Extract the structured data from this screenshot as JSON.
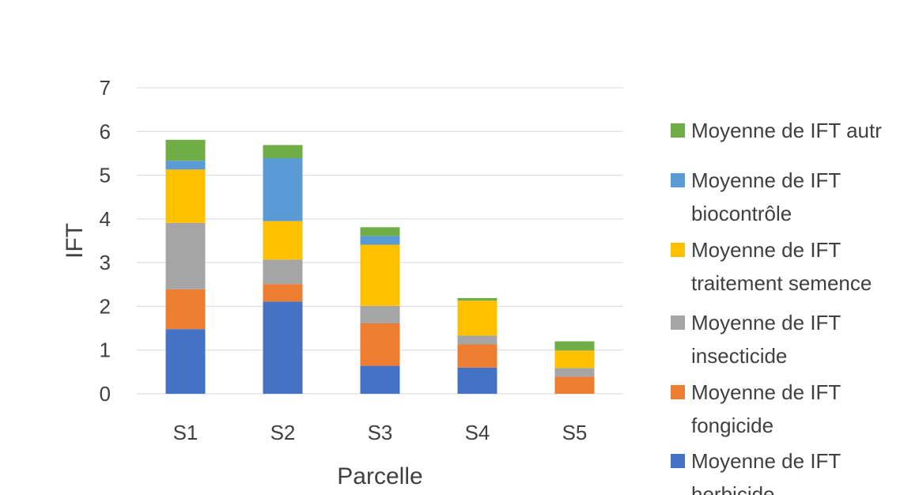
{
  "chart_data": {
    "type": "bar",
    "stacked": true,
    "title": "",
    "xlabel": "Parcelle",
    "ylabel": "IFT",
    "ylim": [
      0,
      7
    ],
    "yticks": [
      "0",
      "1",
      "2",
      "3",
      "4",
      "5",
      "6",
      "7"
    ],
    "grid": true,
    "legend_position": "right",
    "categories": [
      "S1",
      "S2",
      "S3",
      "S4",
      "S5"
    ],
    "series": [
      {
        "name": "Moyenne de IFT herbicide",
        "legend_lines": [
          "Moyenne de IFT",
          "herbicide"
        ],
        "color": "#4472C4",
        "values": [
          1.48,
          2.11,
          0.64,
          0.6,
          0.0
        ]
      },
      {
        "name": "Moyenne de IFT fongicide",
        "legend_lines": [
          "Moyenne de IFT",
          "fongicide"
        ],
        "color": "#ED7D31",
        "values": [
          0.91,
          0.4,
          0.97,
          0.53,
          0.39
        ]
      },
      {
        "name": "Moyenne de IFT insecticide",
        "legend_lines": [
          "Moyenne de IFT",
          "insecticide"
        ],
        "color": "#A5A5A5",
        "values": [
          1.52,
          0.56,
          0.4,
          0.2,
          0.2
        ]
      },
      {
        "name": "Moyenne de IFT traitement semence",
        "legend_lines": [
          "Moyenne de IFT",
          "traitement semence"
        ],
        "color": "#FFC000",
        "values": [
          1.22,
          0.88,
          1.4,
          0.8,
          0.4
        ]
      },
      {
        "name": "Moyenne de IFT biocontrôle",
        "legend_lines": [
          "Moyenne de IFT",
          "biocontrôle"
        ],
        "color": "#5B9BD5",
        "values": [
          0.2,
          1.44,
          0.2,
          0.0,
          0.0
        ]
      },
      {
        "name": "Moyenne de IFT autres",
        "legend_lines": [
          "Moyenne de IFT autr"
        ],
        "color": "#70AD47",
        "values": [
          0.48,
          0.3,
          0.2,
          0.06,
          0.21
        ]
      }
    ]
  }
}
